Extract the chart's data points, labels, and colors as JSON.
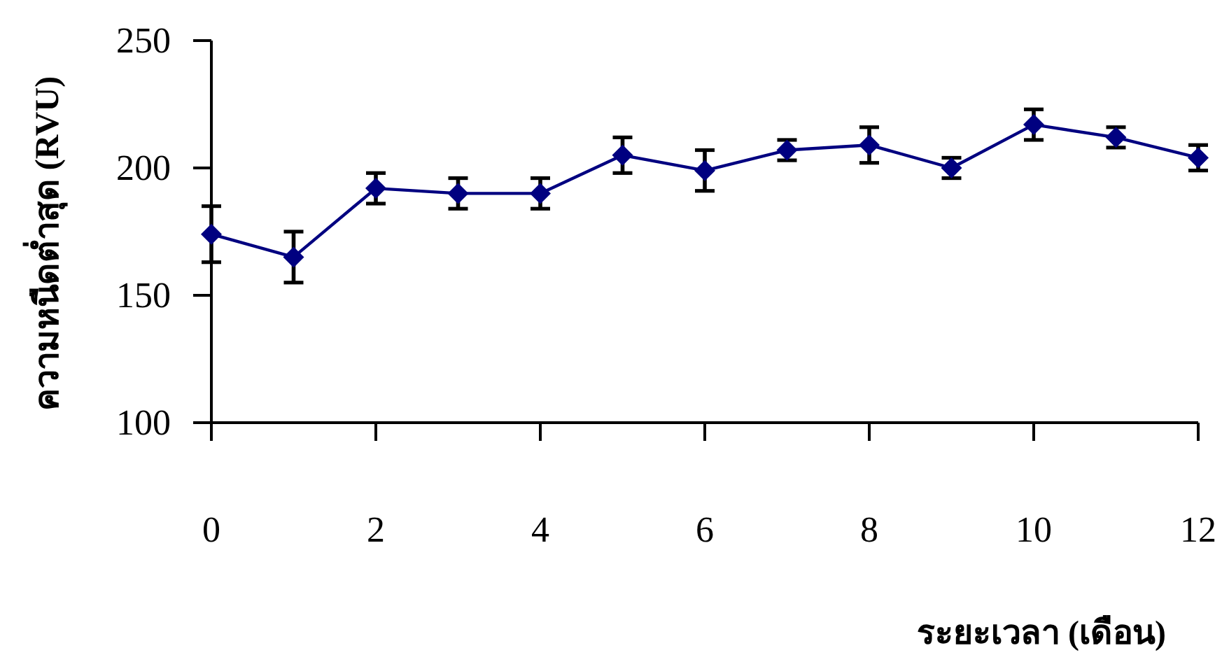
{
  "chart_data": {
    "type": "line",
    "xlabel": "ระยะเวลา (เดือน)",
    "ylabel": "ความหนืดต่ำสุด (RVU)",
    "x": [
      0,
      1,
      2,
      3,
      4,
      5,
      6,
      7,
      8,
      9,
      10,
      11,
      12
    ],
    "series": [
      {
        "color": "#000080",
        "values": [
          174,
          165,
          192,
          190,
          190,
          205,
          199,
          207,
          209,
          200,
          217,
          212,
          204
        ],
        "errors": [
          11,
          10,
          6,
          6,
          6,
          7,
          8,
          4,
          7,
          4,
          6,
          4,
          5
        ]
      }
    ],
    "xlim": [
      0,
      12
    ],
    "xticks": [
      0,
      2,
      4,
      6,
      8,
      10,
      12
    ],
    "ylim": [
      100,
      250
    ],
    "yticks": [
      100,
      150,
      200,
      250
    ],
    "marker": "diamond",
    "line_style": "solid"
  }
}
